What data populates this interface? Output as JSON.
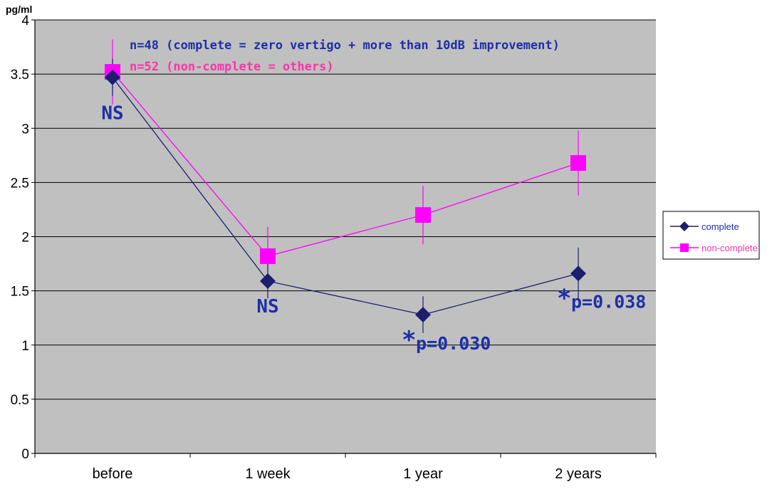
{
  "chart_data": {
    "type": "line",
    "categories": [
      "before",
      "1 week",
      "1 year",
      "2 years"
    ],
    "y_unit": "pg/ml",
    "ylim": [
      0,
      4
    ],
    "yticks": [
      "0",
      "0.5",
      "1",
      "1.5",
      "2",
      "2.5",
      "3",
      "3.5",
      "4"
    ],
    "grid": true,
    "legend_position": "right",
    "series": [
      {
        "name": "complete",
        "values": [
          3.47,
          1.59,
          1.28,
          1.66
        ],
        "errors": [
          0.17,
          0.16,
          0.17,
          0.24
        ],
        "color": "#1b1f6e",
        "marker": "diamond"
      },
      {
        "name": "non-complete",
        "values": [
          3.52,
          1.82,
          2.2,
          2.68
        ],
        "errors": [
          0.3,
          0.27,
          0.27,
          0.3
        ],
        "color": "#ff00ff",
        "marker": "square"
      }
    ],
    "annotations": [
      {
        "text": "n=48 (complete = zero vertigo + more than 10dB improvement)",
        "color": "#1d2fa8"
      },
      {
        "text": "n=52 (non-complete = others)",
        "color": "#ff33aa"
      }
    ],
    "significance": [
      {
        "category": "before",
        "text": "NS"
      },
      {
        "category": "1 week",
        "text": "NS"
      },
      {
        "category": "1 year",
        "star": "*",
        "text": "p=0.030"
      },
      {
        "category": "2 years",
        "star": "*",
        "text": "p=0.038"
      }
    ]
  }
}
